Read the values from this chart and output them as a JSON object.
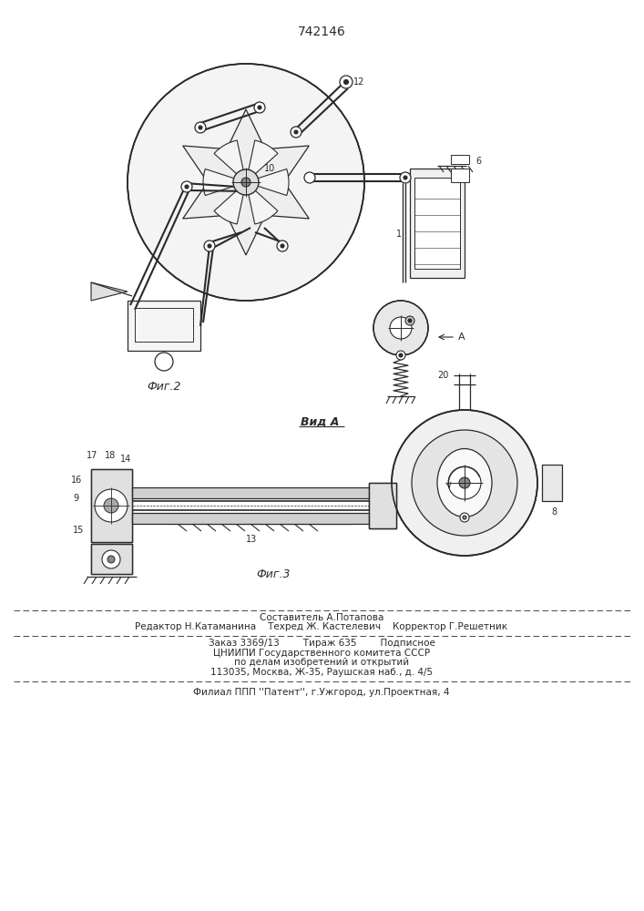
{
  "patent_number": "742146",
  "fig2_label": "Фиг.2",
  "fig3_label": "Фиг.3",
  "vid_a_label": "Вид А",
  "footer_line1": "Составитель А.Потапова",
  "footer_line2": "Редактор Н.Катаманина    Техред Ж. Кастелевич    Корректор Г.Решетник",
  "footer_line3": "Заказ 3369/13        Тираж 635        Подписное",
  "footer_line4": "ЦНИИПИ Государственного комитета СССР",
  "footer_line5": "по делам изобретений и открытий",
  "footer_line6": "113035, Москва, Ж-35, Раушская наб., д. 4/5",
  "footer_line7": "Филиал ППП ''Патент'', г.Ужгород, ул.Проектная, 4",
  "bg_color": "#ffffff",
  "line_color": "#2a2a2a"
}
